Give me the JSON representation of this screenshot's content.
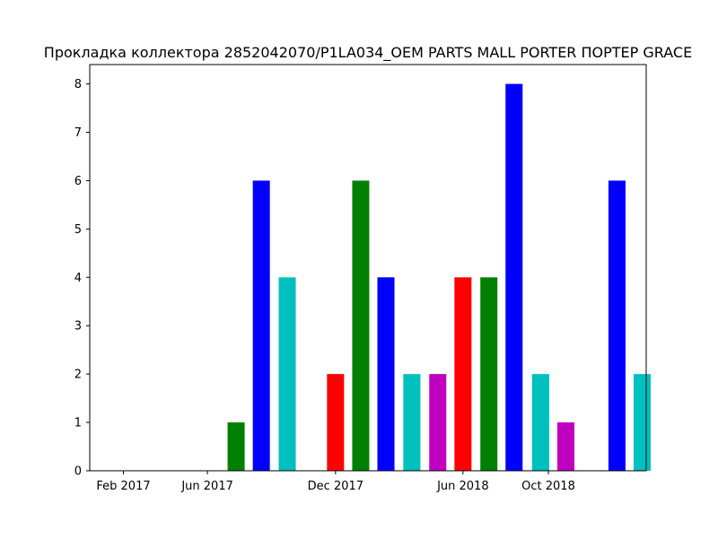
{
  "chart_data": {
    "type": "bar",
    "title": "Прокладка коллектора 2852042070/P1LA034_OEM PARTS MALL PORTER ПОРТЕР GRACE",
    "xlabel": "",
    "ylabel": "",
    "x_ticks": [
      {
        "label": "Feb 2017",
        "date": "2017-02-01"
      },
      {
        "label": "Jun 2017",
        "date": "2017-06-01"
      },
      {
        "label": "Dec 2017",
        "date": "2017-12-01"
      },
      {
        "label": "Jun 2018",
        "date": "2018-06-01"
      },
      {
        "label": "Oct 2018",
        "date": "2018-10-01"
      }
    ],
    "y_ticks": [
      0,
      1,
      2,
      3,
      4,
      5,
      6,
      7,
      8
    ],
    "xlim": [
      "2017-01-01",
      "2019-01-14"
    ],
    "ylim": [
      0,
      8.4
    ],
    "grid": false,
    "bars": [
      {
        "date": "2017-07-12",
        "value": 1,
        "color": "#008000"
      },
      {
        "date": "2017-08-17",
        "value": 6,
        "color": "#0000ff"
      },
      {
        "date": "2017-09-23",
        "value": 4,
        "color": "#00bfbf"
      },
      {
        "date": "2017-12-01",
        "value": 2,
        "color": "#ff0000"
      },
      {
        "date": "2018-01-06",
        "value": 6,
        "color": "#008000"
      },
      {
        "date": "2018-02-11",
        "value": 4,
        "color": "#0000ff"
      },
      {
        "date": "2018-03-20",
        "value": 2,
        "color": "#00bfbf"
      },
      {
        "date": "2018-04-26",
        "value": 2,
        "color": "#bf00bf"
      },
      {
        "date": "2018-06-01",
        "value": 4,
        "color": "#ff0000"
      },
      {
        "date": "2018-07-08",
        "value": 4,
        "color": "#008000"
      },
      {
        "date": "2018-08-13",
        "value": 8,
        "color": "#0000ff"
      },
      {
        "date": "2018-09-20",
        "value": 2,
        "color": "#00bfbf"
      },
      {
        "date": "2018-10-26",
        "value": 1,
        "color": "#bf00bf"
      },
      {
        "date": "2019-01-07",
        "value": 6,
        "color": "#0000ff"
      },
      {
        "date": "2019-02-12",
        "value": 2,
        "color": "#00bfbf"
      }
    ]
  }
}
